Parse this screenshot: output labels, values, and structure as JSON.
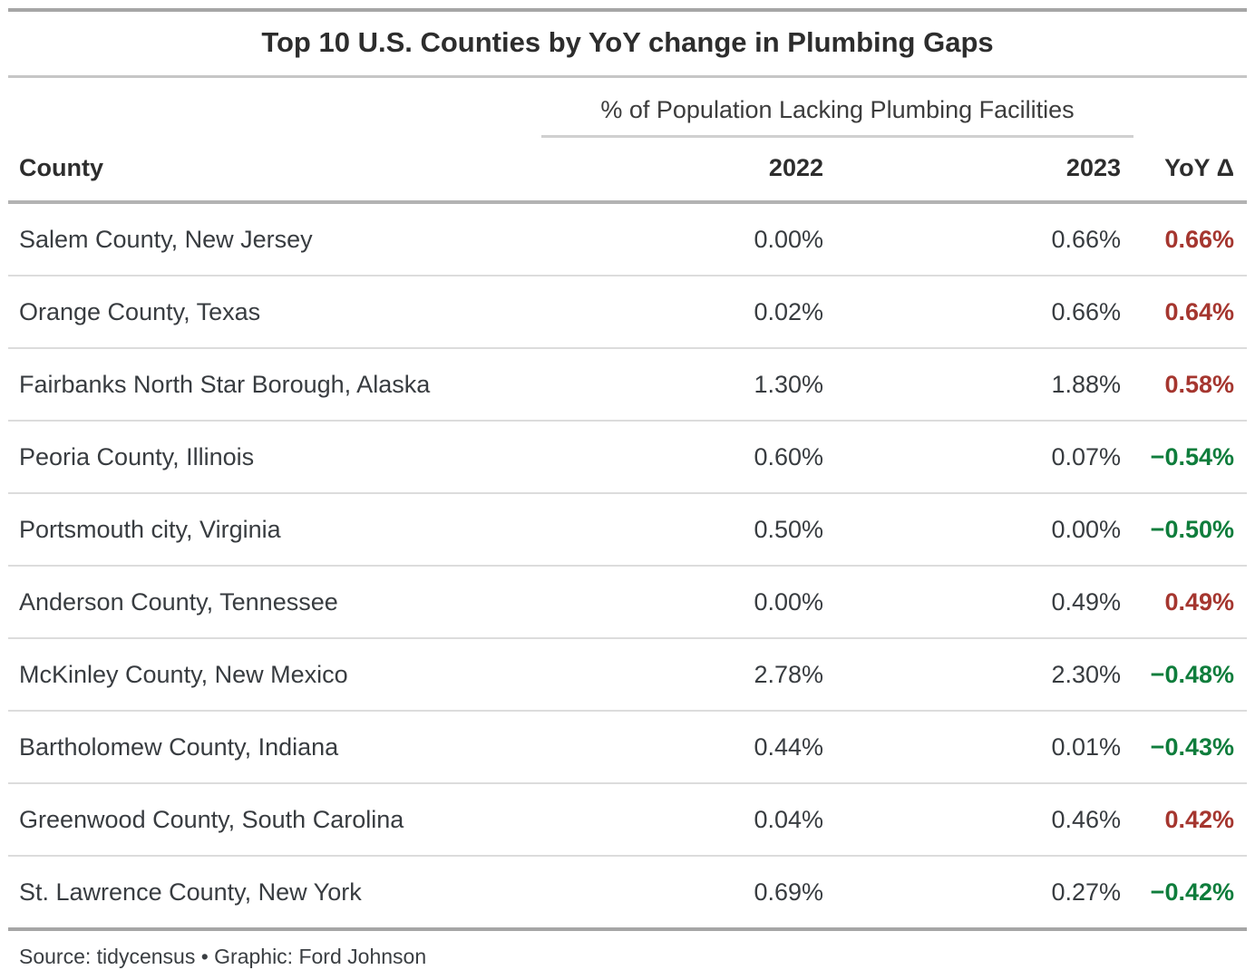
{
  "title": "Top 10 U.S. Counties by YoY change in Plumbing Gaps",
  "spanner": "% of Population Lacking Plumbing Facilities",
  "columns": {
    "county": "County",
    "y2022": "2022",
    "y2023": "2023",
    "yoy": "YoY Δ"
  },
  "rows": [
    {
      "county": "Salem County, New Jersey",
      "v2022": "0.00%",
      "v2023": "0.66%",
      "yoy": "0.66%",
      "direction": "increase"
    },
    {
      "county": "Orange County, Texas",
      "v2022": "0.02%",
      "v2023": "0.66%",
      "yoy": "0.64%",
      "direction": "increase"
    },
    {
      "county": "Fairbanks North Star Borough, Alaska",
      "v2022": "1.30%",
      "v2023": "1.88%",
      "yoy": "0.58%",
      "direction": "increase"
    },
    {
      "county": "Peoria County, Illinois",
      "v2022": "0.60%",
      "v2023": "0.07%",
      "yoy": "−0.54%",
      "direction": "decrease"
    },
    {
      "county": "Portsmouth city, Virginia",
      "v2022": "0.50%",
      "v2023": "0.00%",
      "yoy": "−0.50%",
      "direction": "decrease"
    },
    {
      "county": "Anderson County, Tennessee",
      "v2022": "0.00%",
      "v2023": "0.49%",
      "yoy": "0.49%",
      "direction": "increase"
    },
    {
      "county": "McKinley County, New Mexico",
      "v2022": "2.78%",
      "v2023": "2.30%",
      "yoy": "−0.48%",
      "direction": "decrease"
    },
    {
      "county": "Bartholomew County, Indiana",
      "v2022": "0.44%",
      "v2023": "0.01%",
      "yoy": "−0.43%",
      "direction": "decrease"
    },
    {
      "county": "Greenwood County, South Carolina",
      "v2022": "0.04%",
      "v2023": "0.46%",
      "yoy": "0.42%",
      "direction": "increase"
    },
    {
      "county": "St. Lawrence County, New York",
      "v2022": "0.69%",
      "v2023": "0.27%",
      "yoy": "−0.42%",
      "direction": "decrease"
    }
  ],
  "source_note": "Source: tidycensus • Graphic: Ford Johnson",
  "colors": {
    "increase": "#a5362f",
    "decrease": "#0f7d3c"
  },
  "chart_data": {
    "type": "table",
    "title": "Top 10 U.S. Counties by YoY change in Plumbing Gaps",
    "column_spanner": "% of Population Lacking Plumbing Facilities",
    "columns": [
      "County",
      "2022",
      "2023",
      "YoY Δ"
    ],
    "units": "percent of population lacking plumbing facilities",
    "rows": [
      [
        "Salem County, New Jersey",
        0.0,
        0.66,
        0.66
      ],
      [
        "Orange County, Texas",
        0.02,
        0.66,
        0.64
      ],
      [
        "Fairbanks North Star Borough, Alaska",
        1.3,
        1.88,
        0.58
      ],
      [
        "Peoria County, Illinois",
        0.6,
        0.07,
        -0.54
      ],
      [
        "Portsmouth city, Virginia",
        0.5,
        0.0,
        -0.5
      ],
      [
        "Anderson County, Tennessee",
        0.0,
        0.49,
        0.49
      ],
      [
        "McKinley County, New Mexico",
        2.78,
        2.3,
        -0.48
      ],
      [
        "Bartholomew County, Indiana",
        0.44,
        0.01,
        -0.43
      ],
      [
        "Greenwood County, South Carolina",
        0.04,
        0.46,
        0.42
      ],
      [
        "St. Lawrence County, New York",
        0.69,
        0.27,
        -0.42
      ]
    ],
    "source": "Source: tidycensus • Graphic: Ford Johnson",
    "style_note": "positive YoY deltas shown bold dark red, negative deltas bold green"
  }
}
